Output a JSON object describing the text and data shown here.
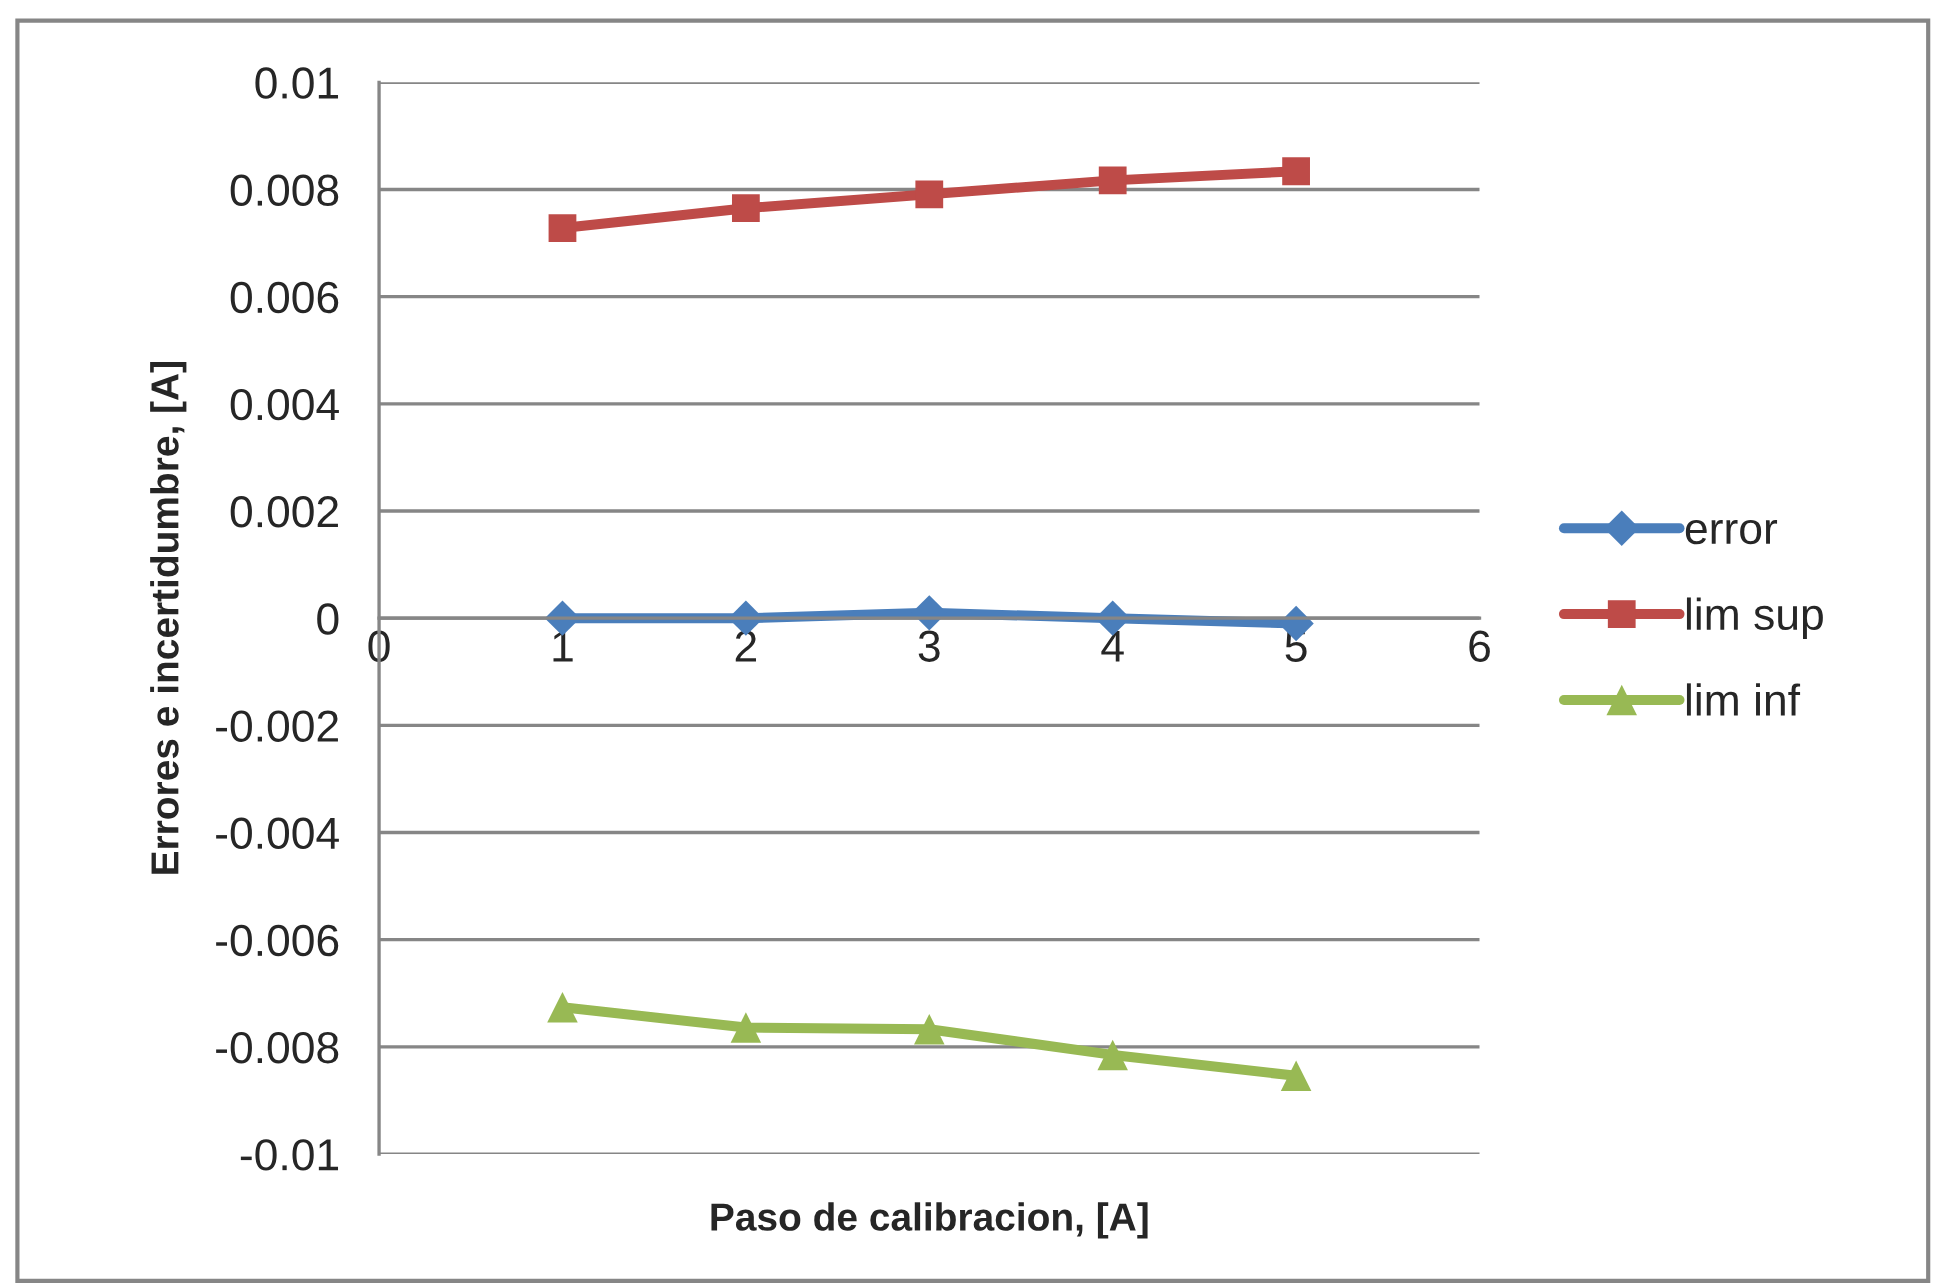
{
  "chart_data": {
    "type": "line",
    "xlabel": "Paso de calibracion, [A]",
    "ylabel": "Errores e incertidumbre, [A]",
    "x": [
      1,
      2,
      3,
      4,
      5
    ],
    "series": [
      {
        "name": "error",
        "color": "#4a7ebb",
        "marker": "diamond",
        "values": [
          0,
          0,
          0.0001,
          0,
          -0.0001
        ]
      },
      {
        "name": "lim sup",
        "color": "#be4b48",
        "marker": "square",
        "values": [
          0.00728,
          0.00765,
          0.00791,
          0.00817,
          0.00834
        ]
      },
      {
        "name": "lim inf",
        "color": "#98b954",
        "marker": "triangle",
        "values": [
          -0.00726,
          -0.00764,
          -0.00767,
          -0.00815,
          -0.00854
        ]
      }
    ],
    "xlim": [
      0,
      6
    ],
    "xticks": [
      0,
      1,
      2,
      3,
      4,
      5,
      6
    ],
    "ylim": [
      -0.01,
      0.01
    ],
    "yticks": [
      -0.01,
      -0.008,
      -0.006,
      -0.004,
      -0.002,
      0,
      0.002,
      0.004,
      0.006,
      0.008,
      0.01
    ],
    "grid": "y",
    "legend": "right",
    "line_style": "solid"
  }
}
